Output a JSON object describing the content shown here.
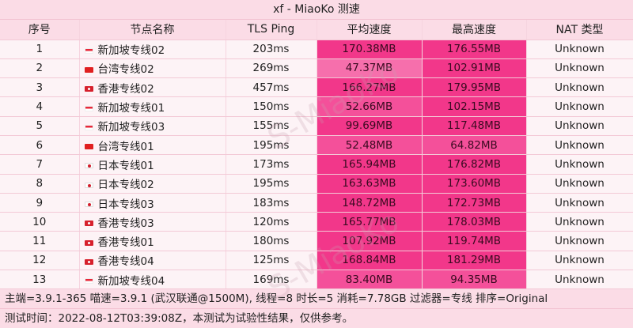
{
  "title": "xf - MiaoKo 测速",
  "watermark": "S-MiaoKo",
  "columns": [
    "序号",
    "节点名称",
    "TLS Ping",
    "平均速度",
    "最高速度",
    "NAT 类型"
  ],
  "colors": {
    "speed_high": "#f2378a",
    "speed_mid": "#f4509a",
    "speed_low": "#f66fac"
  },
  "rows": [
    {
      "no": "1",
      "flag": "sg",
      "name": "新加坡专线02",
      "ping": "203ms",
      "avg": "170.38MB",
      "max": "176.55MB",
      "nat": "Unknown"
    },
    {
      "no": "2",
      "flag": "tw",
      "name": "台湾专线02",
      "ping": "269ms",
      "avg": "47.37MB",
      "max": "102.91MB",
      "nat": "Unknown"
    },
    {
      "no": "3",
      "flag": "hk",
      "name": "香港专线02",
      "ping": "457ms",
      "avg": "166.27MB",
      "max": "179.95MB",
      "nat": "Unknown"
    },
    {
      "no": "4",
      "flag": "sg",
      "name": "新加坡专线01",
      "ping": "150ms",
      "avg": "52.66MB",
      "max": "102.15MB",
      "nat": "Unknown"
    },
    {
      "no": "5",
      "flag": "sg",
      "name": "新加坡专线03",
      "ping": "155ms",
      "avg": "99.69MB",
      "max": "117.48MB",
      "nat": "Unknown"
    },
    {
      "no": "6",
      "flag": "tw",
      "name": "台湾专线01",
      "ping": "195ms",
      "avg": "52.48MB",
      "max": "64.82MB",
      "nat": "Unknown"
    },
    {
      "no": "7",
      "flag": "jp",
      "name": "日本专线01",
      "ping": "173ms",
      "avg": "165.94MB",
      "max": "176.82MB",
      "nat": "Unknown"
    },
    {
      "no": "8",
      "flag": "jp",
      "name": "日本专线02",
      "ping": "195ms",
      "avg": "163.63MB",
      "max": "173.60MB",
      "nat": "Unknown"
    },
    {
      "no": "9",
      "flag": "jp",
      "name": "日本专线03",
      "ping": "183ms",
      "avg": "148.72MB",
      "max": "172.73MB",
      "nat": "Unknown"
    },
    {
      "no": "10",
      "flag": "hk",
      "name": "香港专线03",
      "ping": "120ms",
      "avg": "165.77MB",
      "max": "178.03MB",
      "nat": "Unknown"
    },
    {
      "no": "11",
      "flag": "hk",
      "name": "香港专线01",
      "ping": "180ms",
      "avg": "107.92MB",
      "max": "119.74MB",
      "nat": "Unknown"
    },
    {
      "no": "12",
      "flag": "hk",
      "name": "香港专线04",
      "ping": "125ms",
      "avg": "168.84MB",
      "max": "181.29MB",
      "nat": "Unknown"
    },
    {
      "no": "13",
      "flag": "sg",
      "name": "新加坡专线04",
      "ping": "169ms",
      "avg": "83.40MB",
      "max": "94.35MB",
      "nat": "Unknown"
    }
  ],
  "footer": {
    "line1": "主端=3.9.1-365 喵速=3.9.1 (武汉联通@1500M), 线程=8 时长=5 消耗=7.78GB 过滤器=专线 排序=Original",
    "line2": "测试时间：2022-08-12T03:39:08Z，本测试为试验性结果，仅供参考。"
  }
}
